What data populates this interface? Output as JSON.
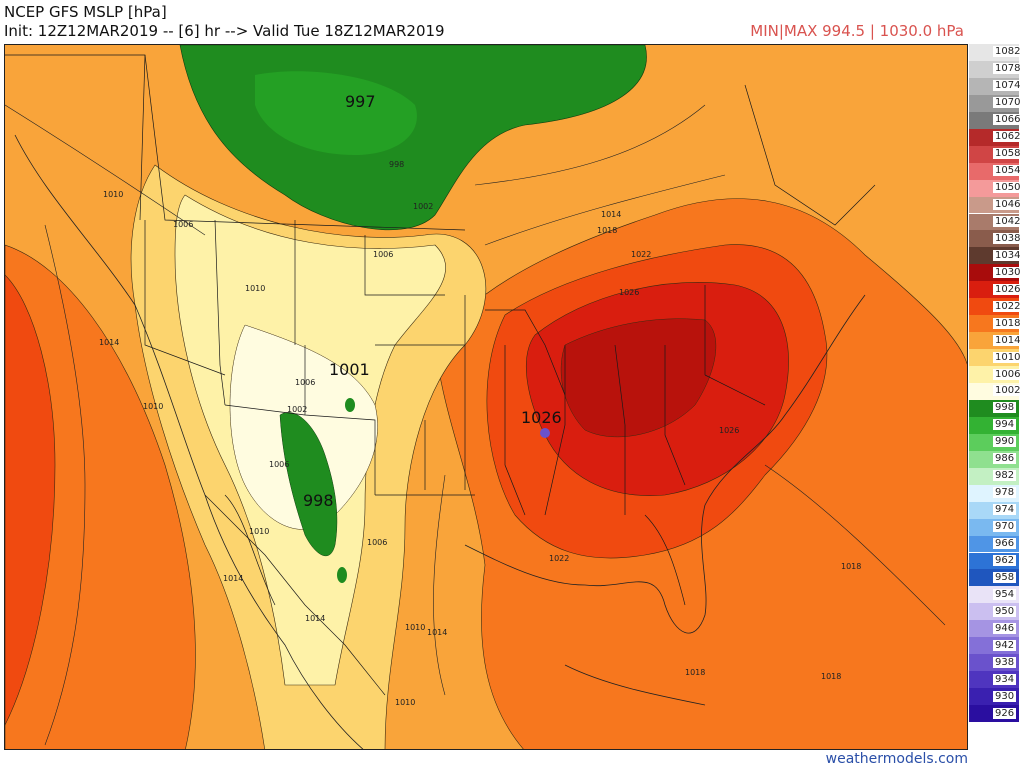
{
  "header": {
    "title": "NCEP GFS MSLP [hPa]",
    "init_line": "Init: 12Z12MAR2019 -- [6] hr --> Valid Tue 18Z12MAR2019",
    "minmax": "MIN|MAX 994.5 | 1030.0 hPa"
  },
  "footer": {
    "credit": "weathermodels.com"
  },
  "map": {
    "pressure_centers": [
      {
        "label": "997"
      },
      {
        "label": "1001"
      },
      {
        "label": "1026"
      },
      {
        "label": "998"
      }
    ],
    "isobar_labels": [
      "1010",
      "1006",
      "998",
      "1002",
      "1006",
      "1010",
      "1014",
      "1010",
      "1006",
      "1002",
      "1006",
      "1010",
      "1014",
      "1014",
      "1010",
      "1010",
      "1014",
      "1006",
      "1014",
      "1018",
      "1022",
      "1026",
      "1026",
      "1022",
      "1018",
      "1018",
      "1018"
    ]
  },
  "legend": {
    "items": [
      {
        "label": "1082",
        "color": "#e6e6e6"
      },
      {
        "label": "1078",
        "color": "#cfcfcf"
      },
      {
        "label": "1074",
        "color": "#b5b5b5"
      },
      {
        "label": "1070",
        "color": "#999999"
      },
      {
        "label": "1066",
        "color": "#7a7a7a"
      },
      {
        "label": "1062",
        "color": "#b52a2a"
      },
      {
        "label": "1058",
        "color": "#d04545"
      },
      {
        "label": "1054",
        "color": "#e86a6a"
      },
      {
        "label": "1050",
        "color": "#f49a9a"
      },
      {
        "label": "1046",
        "color": "#c99a8a"
      },
      {
        "label": "1042",
        "color": "#a97b6b"
      },
      {
        "label": "1038",
        "color": "#8a5c4c"
      },
      {
        "label": "1034",
        "color": "#5e3a2e"
      },
      {
        "label": "1030",
        "color": "#a80c0c"
      },
      {
        "label": "1026",
        "color": "#d91e0f"
      },
      {
        "label": "1022",
        "color": "#f04a10"
      },
      {
        "label": "1018",
        "color": "#f7771e"
      },
      {
        "label": "1014",
        "color": "#f9a43a"
      },
      {
        "label": "1010",
        "color": "#fcd46e"
      },
      {
        "label": "1006",
        "color": "#fef2a8"
      },
      {
        "label": "1002",
        "color": "#fffce0"
      },
      {
        "label": "998",
        "color": "#1f8c1f"
      },
      {
        "label": "994",
        "color": "#33b233"
      },
      {
        "label": "990",
        "color": "#5ccd5c"
      },
      {
        "label": "986",
        "color": "#8fe08f"
      },
      {
        "label": "982",
        "color": "#c3f0c3"
      },
      {
        "label": "978",
        "color": "#dff4ff"
      },
      {
        "label": "974",
        "color": "#a9d8f7"
      },
      {
        "label": "970",
        "color": "#7ab9f0"
      },
      {
        "label": "966",
        "color": "#4f95e6"
      },
      {
        "label": "962",
        "color": "#2d73d6"
      },
      {
        "label": "958",
        "color": "#1f56be"
      },
      {
        "label": "954",
        "color": "#e9e3f7"
      },
      {
        "label": "950",
        "color": "#cbbff0"
      },
      {
        "label": "946",
        "color": "#a594e3"
      },
      {
        "label": "942",
        "color": "#8470d8"
      },
      {
        "label": "938",
        "color": "#6a52cc"
      },
      {
        "label": "934",
        "color": "#4f35bf"
      },
      {
        "label": "930",
        "color": "#3a20b0"
      },
      {
        "label": "926",
        "color": "#2a0ea0"
      }
    ]
  }
}
